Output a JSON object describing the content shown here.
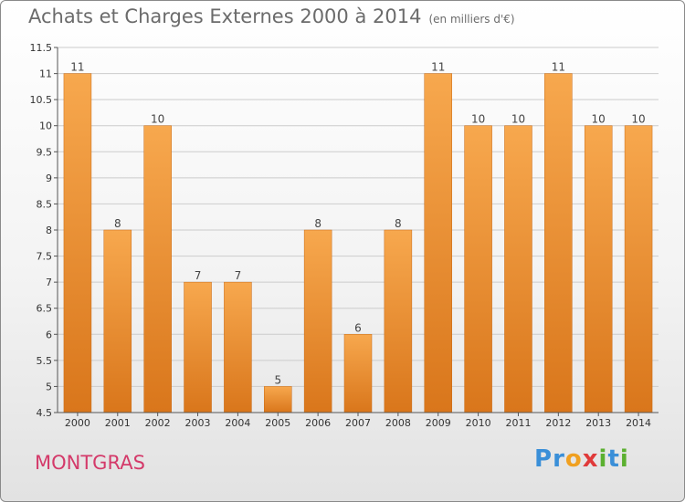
{
  "title": "Achats et Charges Externes 2000 à 2014",
  "subtitle": "(en milliers d'€)",
  "town": "MONTGRAS",
  "logo": {
    "text": "Proxiti",
    "letters": [
      "P",
      "r",
      "o",
      "x",
      "i",
      "t",
      "i"
    ],
    "colors": [
      "#3a8fd8",
      "#3a8fd8",
      "#f0a020",
      "#e03a3a",
      "#5bb030",
      "#3a8fd8",
      "#5bb030"
    ]
  },
  "colors": {
    "bar_light": "#f7a84e",
    "bar_dark": "#d9761b",
    "grid": "#cccccc",
    "axis_text": "#333333",
    "title": "#6b6b6b",
    "town": "#d43a6a"
  },
  "chart_data": {
    "type": "bar",
    "title": "Achats et Charges Externes 2000 à 2014",
    "categories": [
      "2000",
      "2001",
      "2002",
      "2003",
      "2004",
      "2005",
      "2006",
      "2007",
      "2008",
      "2009",
      "2010",
      "2011",
      "2012",
      "2013",
      "2014"
    ],
    "values": [
      11,
      8,
      10,
      7,
      7,
      5,
      8,
      6,
      8,
      11,
      10,
      10,
      11,
      10,
      10
    ],
    "data_labels": [
      "11",
      "8",
      "10",
      "7",
      "7",
      "5",
      "8",
      "6",
      "8",
      "11",
      "10",
      "10",
      "11",
      "10",
      "10"
    ],
    "yticks": [
      "4.5",
      "5",
      "5.5",
      "6",
      "6.5",
      "7",
      "7.5",
      "8",
      "8.5",
      "9",
      "9.5",
      "10",
      "10.5",
      "11",
      "11.5"
    ],
    "ylim": [
      4.5,
      11.5
    ],
    "grid": true
  }
}
